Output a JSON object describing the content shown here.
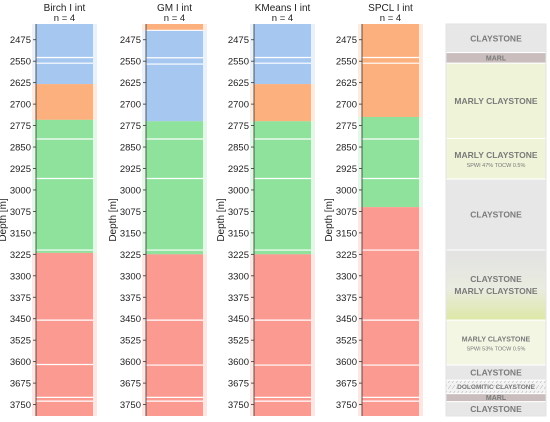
{
  "chart_data": {
    "type": "column-strip",
    "ylabel": "Depth [m]",
    "y_range": [
      2420,
      3790
    ],
    "y_ticks": [
      2475,
      2550,
      2625,
      2700,
      2775,
      2850,
      2925,
      3000,
      3075,
      3150,
      3225,
      3300,
      3375,
      3450,
      3525,
      3600,
      3675,
      3750
    ],
    "colors": {
      "c1": "#a6c8f0",
      "c2": "#fbb07d",
      "c3": "#8ee29c",
      "c4": "#fb9a91"
    },
    "panels": [
      {
        "title": "Birch I int",
        "subtitle": "n = 4",
        "intervals": [
          {
            "top": 2420,
            "bottom": 2537,
            "cluster": "c1"
          },
          {
            "top": 2537,
            "bottom": 2542,
            "cluster": "c1"
          },
          {
            "top": 2542,
            "bottom": 2537,
            "cluster": "c1"
          },
          {
            "top": 2542,
            "bottom": 2630,
            "cluster": "c1"
          },
          {
            "top": 2630,
            "bottom": 2755,
            "cluster": "c2"
          },
          {
            "top": 2755,
            "bottom": 3220,
            "cluster": "c3"
          },
          {
            "top": 3220,
            "bottom": 3790,
            "cluster": "c4"
          }
        ],
        "white_lines": [
          2537,
          2557,
          2822,
          2960,
          3210,
          3455,
          3610,
          3725,
          3738
        ]
      },
      {
        "title": "GM I int",
        "subtitle": "n = 4",
        "intervals": [
          {
            "top": 2420,
            "bottom": 2442,
            "cluster": "c2"
          },
          {
            "top": 2442,
            "bottom": 2760,
            "cluster": "c1"
          },
          {
            "top": 2760,
            "bottom": 3225,
            "cluster": "c3"
          },
          {
            "top": 3225,
            "bottom": 3790,
            "cluster": "c4"
          }
        ],
        "white_lines": [
          2442,
          2538,
          2560,
          2822,
          2960,
          3210,
          3455,
          3612,
          3725,
          3738
        ]
      },
      {
        "title": "KMeans I int",
        "subtitle": "n = 4",
        "intervals": [
          {
            "top": 2420,
            "bottom": 2630,
            "cluster": "c1"
          },
          {
            "top": 2630,
            "bottom": 2760,
            "cluster": "c2"
          },
          {
            "top": 2760,
            "bottom": 3225,
            "cluster": "c3"
          },
          {
            "top": 3225,
            "bottom": 3790,
            "cluster": "c4"
          }
        ],
        "white_lines": [
          2537,
          2557,
          2822,
          2960,
          3210,
          3455,
          3612,
          3725,
          3738
        ]
      },
      {
        "title": "SPCL I int",
        "subtitle": "n = 4",
        "intervals": [
          {
            "top": 2420,
            "bottom": 2745,
            "cluster": "c2"
          },
          {
            "top": 2745,
            "bottom": 3060,
            "cluster": "c3"
          },
          {
            "top": 3060,
            "bottom": 3790,
            "cluster": "c4"
          }
        ],
        "white_lines": [
          2537,
          2557,
          2822,
          2960,
          3210,
          3455,
          3612,
          3725,
          3738
        ]
      }
    ],
    "lithology": [
      {
        "top": 2420,
        "bottom": 2520,
        "label": "CLAYSTONE",
        "sublabel": "",
        "fill": "#e7e7e7",
        "gradient": false,
        "size": 8.5
      },
      {
        "top": 2520,
        "bottom": 2557,
        "label": "MARL",
        "sublabel": "",
        "fill": "#c9bdbd",
        "gradient": false,
        "size": 7
      },
      {
        "top": 2557,
        "bottom": 2820,
        "label": "MARLY CLAYSTONE",
        "sublabel": "",
        "fill": "#eff3d7",
        "gradient": false,
        "size": 8.5
      },
      {
        "top": 2820,
        "bottom": 2962,
        "label": "MARLY CLAYSTONE",
        "sublabel": "SPWI 47% TOCW 0.5%",
        "fill": "#eff3d7",
        "gradient": false,
        "size": 8.5
      },
      {
        "top": 2962,
        "bottom": 3210,
        "label": "CLAYSTONE",
        "sublabel": "",
        "fill": "#e7e7e7",
        "gradient": false,
        "size": 8.5
      },
      {
        "top": 3210,
        "bottom": 3455,
        "label": "CLAYSTONE",
        "sublabel": "MARLY CLAYSTONE",
        "fill": "#e7e7e7",
        "gradient": true,
        "size": 8.5
      },
      {
        "top": 3455,
        "bottom": 3612,
        "label": "MARLY CLAYSTONE",
        "sublabel": "SPWI 53% TOCW 0.5%",
        "fill": "#f4f6e4",
        "gradient": false,
        "size": 7
      },
      {
        "top": 3612,
        "bottom": 3665,
        "label": "CLAYSTONE",
        "sublabel": "",
        "fill": "#e7e7e7",
        "gradient": false,
        "size": 8.5
      },
      {
        "top": 3665,
        "bottom": 3712,
        "label": "DOLOMITIC CLAYSTONE",
        "sublabel": "",
        "fill": "#ededed",
        "gradient": false,
        "size": 6.5
      },
      {
        "top": 3712,
        "bottom": 3740,
        "label": "MARL",
        "sublabel": "",
        "fill": "#c9bdbd",
        "gradient": false,
        "size": 7
      },
      {
        "top": 3740,
        "bottom": 3790,
        "label": "CLAYSTONE",
        "sublabel": "",
        "fill": "#e7e7e7",
        "gradient": false,
        "size": 8.5
      }
    ]
  }
}
